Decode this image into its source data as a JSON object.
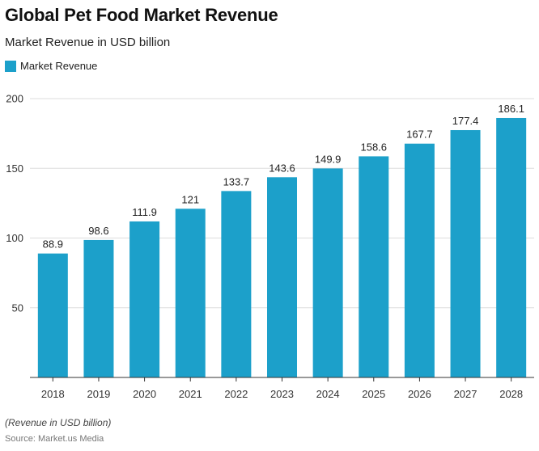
{
  "header": {
    "title": "Global Pet Food Market Revenue",
    "subtitle": "Market Revenue in USD billion"
  },
  "footer": {
    "note": "(Revenue in USD billion)",
    "source": "Source: Market.us Media"
  },
  "colors": {
    "bar": "#1ca0ca",
    "grid": "#dddddd",
    "axis": "#333333",
    "tick_text": "#333333",
    "label_text": "#222222"
  },
  "chart_data": {
    "type": "bar",
    "title": "Global Pet Food Market Revenue",
    "subtitle": "Market Revenue in USD billion",
    "xlabel": "",
    "ylabel": "",
    "categories": [
      "2018",
      "2019",
      "2020",
      "2021",
      "2022",
      "2023",
      "2024",
      "2025",
      "2026",
      "2027",
      "2028"
    ],
    "series": [
      {
        "name": "Market Revenue",
        "values": [
          88.9,
          98.6,
          111.9,
          121,
          133.7,
          143.6,
          149.9,
          158.6,
          167.7,
          177.4,
          186.1
        ],
        "labels": [
          "88.9",
          "98.6",
          "111.9",
          "121",
          "133.7",
          "143.6",
          "149.9",
          "158.6",
          "167.7",
          "177.4",
          "186.1"
        ]
      }
    ],
    "ylim": [
      0,
      200
    ],
    "yticks": [
      50,
      100,
      150,
      200
    ],
    "grid": true,
    "legend": "top-left"
  }
}
